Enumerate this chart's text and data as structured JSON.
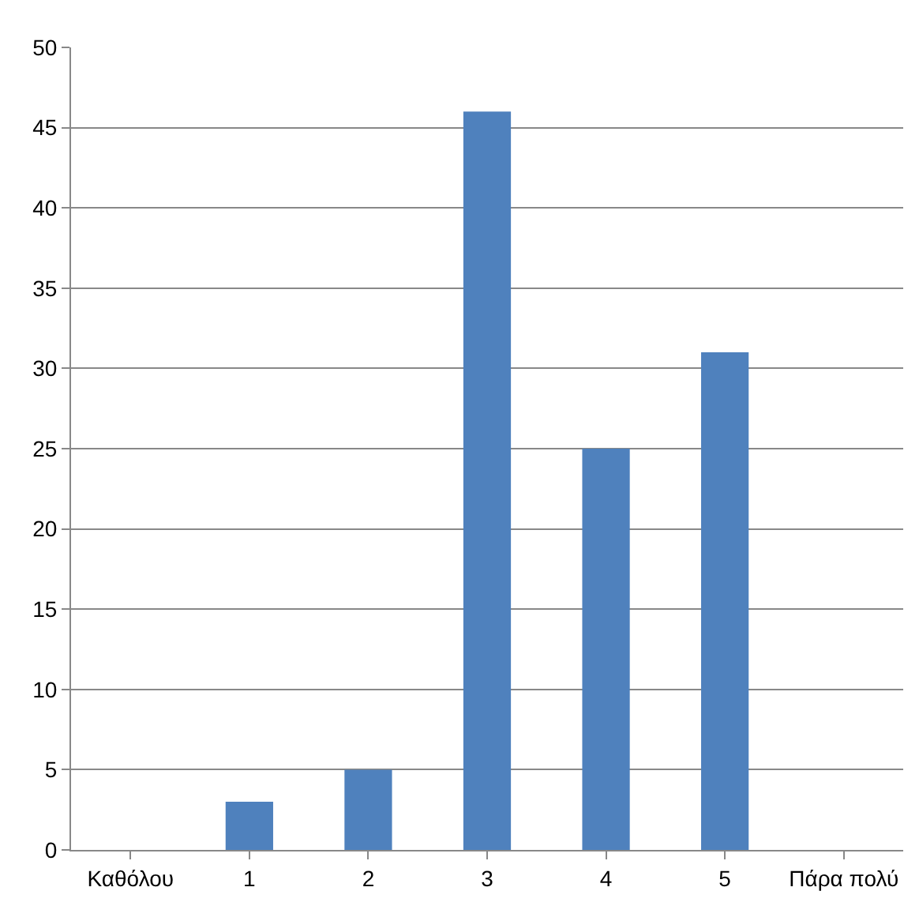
{
  "chart_data": {
    "type": "bar",
    "categories": [
      "Καθόλου",
      "1",
      "2",
      "3",
      "4",
      "5",
      "Πάρα πολύ"
    ],
    "values": [
      0,
      3,
      5,
      46,
      25,
      31,
      0
    ],
    "color": "#4f81bd",
    "ylim": [
      0,
      50
    ],
    "yticks": [
      0,
      5,
      10,
      15,
      20,
      25,
      30,
      35,
      40,
      45,
      50
    ],
    "grid": "y"
  }
}
